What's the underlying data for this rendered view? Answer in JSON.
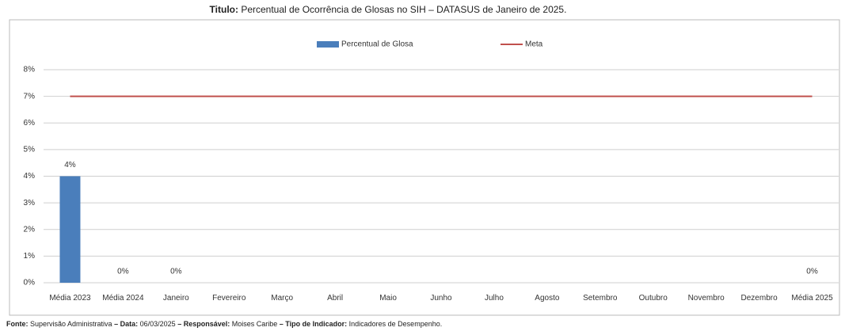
{
  "chart_data": {
    "type": "bar",
    "title_label": "Titulo:",
    "title": "Percentual de Ocorrência de Glosas no SIH – DATASUS  de Janeiro de 2025.",
    "categories": [
      "Média 2023",
      "Média 2024",
      "Janeiro",
      "Fevereiro",
      "Março",
      "Abril",
      "Maio",
      "Junho",
      "Julho",
      "Agosto",
      "Setembro",
      "Outubro",
      "Novembro",
      "Dezembro",
      "Média 2025"
    ],
    "series": [
      {
        "name": "Percentual de Glosa",
        "type": "bar",
        "color": "#4a7ebb",
        "values": [
          4,
          0,
          0,
          null,
          null,
          null,
          null,
          null,
          null,
          null,
          null,
          null,
          null,
          null,
          0
        ],
        "value_labels": [
          "4%",
          "0%",
          "0%",
          null,
          null,
          null,
          null,
          null,
          null,
          null,
          null,
          null,
          null,
          null,
          "0%"
        ]
      },
      {
        "name": "Meta",
        "type": "line",
        "color": "#c0504d",
        "values": [
          7,
          7,
          7,
          7,
          7,
          7,
          7,
          7,
          7,
          7,
          7,
          7,
          7,
          7,
          7
        ]
      }
    ],
    "ylim": [
      0,
      8
    ],
    "yticks": [
      {
        "value": 0,
        "label": "0%"
      },
      {
        "value": 1,
        "label": "1%"
      },
      {
        "value": 2,
        "label": "2%"
      },
      {
        "value": 3,
        "label": "3%"
      },
      {
        "value": 4,
        "label": "4%"
      },
      {
        "value": 5,
        "label": "5%"
      },
      {
        "value": 6,
        "label": "6%"
      },
      {
        "value": 7,
        "label": "7%"
      },
      {
        "value": 8,
        "label": "8%"
      }
    ],
    "grid": true,
    "legend": "top",
    "footer": [
      {
        "label": "Fonte:",
        "value": "Supervisão Administrativa"
      },
      {
        "label": "– Data:",
        "value": "06/03/2025"
      },
      {
        "label": "– Responsável:",
        "value": "Moises Caribe"
      },
      {
        "label": "– Tipo de Indicador:",
        "value": "Indicadores de Desempenho."
      }
    ]
  }
}
